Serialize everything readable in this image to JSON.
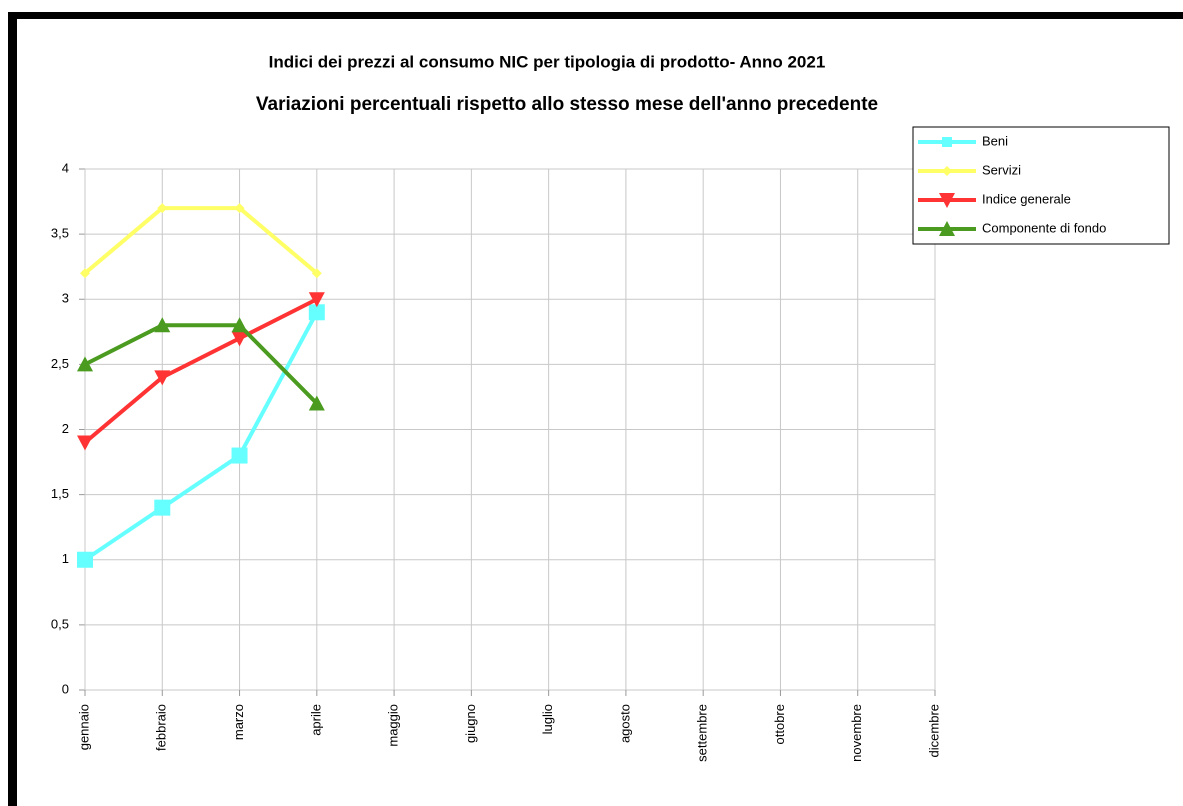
{
  "chart_data": {
    "type": "line",
    "title": "Indici dei prezzi al consumo NIC per tipologia di prodotto- Anno 2021",
    "subtitle": "Variazioni percentuali rispetto allo stesso mese dell'anno precedente",
    "categories": [
      "gennaio",
      "febbraio",
      "marzo",
      "aprile",
      "maggio",
      "giugno",
      "luglio",
      "agosto",
      "settembre",
      "ottobre",
      "novembre",
      "dicembre"
    ],
    "series": [
      {
        "name": "Beni",
        "color": "#66ffff",
        "marker": "square",
        "values": [
          1,
          1.4,
          1.8,
          2.9,
          null,
          null,
          null,
          null,
          null,
          null,
          null,
          null
        ]
      },
      {
        "name": "Servizi",
        "color": "#ffff66",
        "marker": "diamond",
        "values": [
          3.2,
          3.7,
          3.7,
          3.2,
          null,
          null,
          null,
          null,
          null,
          null,
          null,
          null
        ]
      },
      {
        "name": "Indice generale",
        "color": "#ff3333",
        "marker": "triangle-down",
        "values": [
          1.9,
          2.4,
          2.7,
          3.0,
          null,
          null,
          null,
          null,
          null,
          null,
          null,
          null
        ]
      },
      {
        "name": "Componente di fondo",
        "color": "#4a9b1f",
        "marker": "triangle-up",
        "values": [
          2.5,
          2.8,
          2.8,
          2.2,
          null,
          null,
          null,
          null,
          null,
          null,
          null,
          null
        ]
      }
    ],
    "ylim": [
      0,
      4
    ],
    "yticks": [
      0,
      {
        "value": 0.5,
        "label": "0,5"
      },
      1,
      {
        "value": 1.5,
        "label": "1,5"
      },
      2,
      {
        "value": 2.5,
        "label": "2,5"
      },
      3,
      {
        "value": 3.5,
        "label": "3,5"
      },
      4
    ],
    "grid": true,
    "legend": "top-right"
  }
}
